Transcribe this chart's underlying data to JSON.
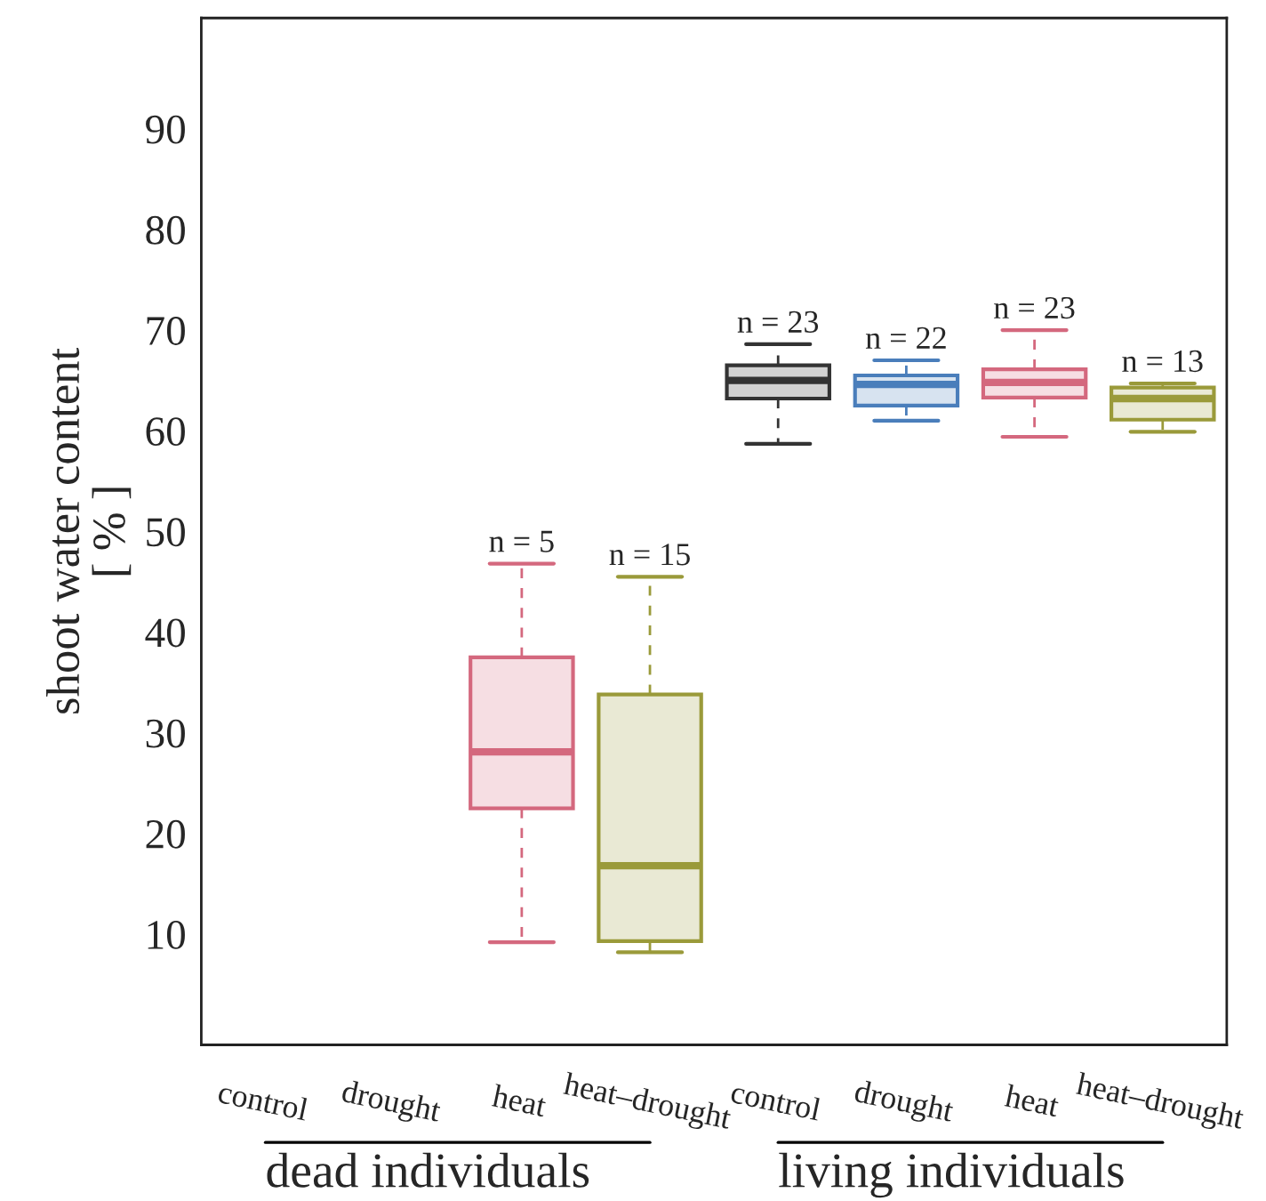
{
  "chart_data": {
    "type": "box",
    "ylabel": "shoot water content\n[ % ]",
    "categories": [
      "control",
      "drought",
      "heat",
      "heat–drought",
      "control",
      "drought",
      "heat",
      "heat–drought"
    ],
    "boxes": [
      null,
      null,
      {
        "low": 9.2,
        "q1": 22.5,
        "median": 28.1,
        "q3": 37.5,
        "high": 46.8
      },
      {
        "low": 8.2,
        "q1": 9.3,
        "median": 16.8,
        "q3": 33.8,
        "high": 45.5
      },
      {
        "low": 58.7,
        "q1": 63.2,
        "median": 65.0,
        "q3": 66.5,
        "high": 68.6
      },
      {
        "low": 61.0,
        "q1": 62.5,
        "median": 64.6,
        "q3": 65.5,
        "high": 67.0
      },
      {
        "low": 59.4,
        "q1": 63.3,
        "median": 64.8,
        "q3": 66.1,
        "high": 70.0
      },
      {
        "low": 59.9,
        "q1": 61.1,
        "median": 63.2,
        "q3": 64.3,
        "high": 64.7
      }
    ],
    "colors": [
      null,
      null,
      "#d4687e",
      "#9a9a3a",
      "#333333",
      "#4a7ebb",
      "#d4687e",
      "#9a9a3a"
    ],
    "annotations": [
      "n = 5",
      "n = 15",
      "n = 23",
      "n = 22",
      "n = 23",
      "n = 13",
      "dead individuals",
      "living individuals"
    ],
    "ylim": [
      -1,
      101
    ],
    "yticks": [
      10,
      20,
      30,
      40,
      50,
      60,
      70,
      80,
      90
    ],
    "grid": false,
    "legend": false
  }
}
